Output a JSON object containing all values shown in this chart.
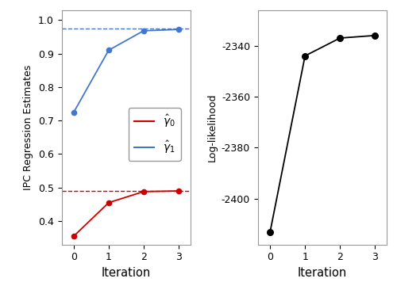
{
  "iterations": [
    0,
    1,
    2,
    3
  ],
  "red_values": [
    0.355,
    0.455,
    0.488,
    0.49
  ],
  "blue_values": [
    0.725,
    0.91,
    0.968,
    0.972
  ],
  "red_dashed": 0.49,
  "blue_dashed": 0.975,
  "loglik_values": [
    -2413,
    -2344,
    -2337,
    -2336
  ],
  "left_ylabel": "IPC Regression Estimates",
  "right_ylabel": "Log-likelihood",
  "xlabel": "Iteration",
  "ylim_left": [
    0.33,
    1.03
  ],
  "ylim_right": [
    -2418,
    -2326
  ],
  "yticks_left": [
    0.4,
    0.5,
    0.6,
    0.7,
    0.8,
    0.9,
    1.0
  ],
  "yticks_right": [
    -2400,
    -2380,
    -2360,
    -2340
  ],
  "red_color": "#CC0000",
  "blue_color": "#4477CC",
  "black_color": "#000000",
  "bg_color": "#FFFFFF",
  "spine_color": "#999999"
}
